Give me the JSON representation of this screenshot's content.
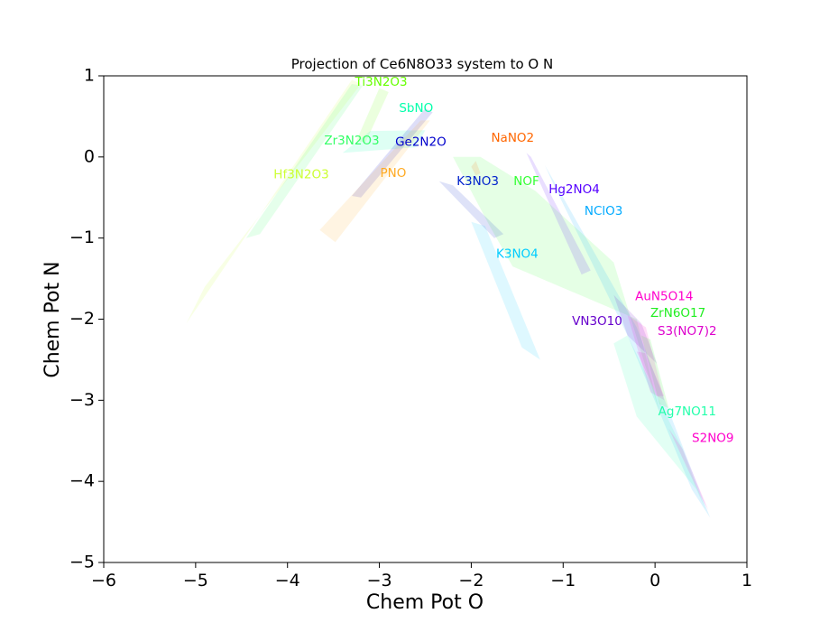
{
  "chart_data": {
    "type": "area",
    "title": "Projection of Ce6N8O33 system to O N",
    "xlabel": "Chem Pot O",
    "ylabel": "Chem Pot N",
    "xlim": [
      -6,
      1
    ],
    "ylim": [
      -5,
      1
    ],
    "xticks": [
      -6,
      -5,
      -4,
      -3,
      -2,
      -1,
      0,
      1
    ],
    "yticks": [
      -5,
      -4,
      -3,
      -2,
      -1,
      0,
      1
    ],
    "xtick_labels": [
      "−6",
      "−5",
      "−4",
      "−3",
      "−2",
      "−1",
      "0",
      "1"
    ],
    "ytick_labels": [
      "−5",
      "−4",
      "−3",
      "−2",
      "−1",
      "0",
      "1"
    ],
    "grid": false,
    "regions": [
      {
        "name": "Hf3N2O3",
        "color": "#ccff33",
        "label_at": [
          -3.85,
          -0.22
        ],
        "polygon": [
          [
            -5.1,
            -2.05
          ],
          [
            -3.3,
            0.95
          ],
          [
            -3.2,
            0.9
          ],
          [
            -4.9,
            -1.6
          ]
        ]
      },
      {
        "name": "Zr3N2O3",
        "color": "#33ff66",
        "label_at": [
          -3.3,
          0.2
        ],
        "polygon": [
          [
            -4.45,
            -1.0
          ],
          [
            -3.3,
            0.9
          ],
          [
            -3.18,
            0.88
          ],
          [
            -4.3,
            -0.95
          ]
        ]
      },
      {
        "name": "Ti3N2O3",
        "color": "#66ff00",
        "label_at": [
          -2.98,
          0.92
        ],
        "polygon": [
          [
            -3.25,
            0.2
          ],
          [
            -3.0,
            0.85
          ],
          [
            -2.9,
            0.8
          ],
          [
            -3.15,
            0.18
          ]
        ]
      },
      {
        "name": "SbNO",
        "color": "#00ffaa",
        "label_at": [
          -2.6,
          0.6
        ],
        "polygon": [
          [
            -3.4,
            0.05
          ],
          [
            -3.1,
            0.32
          ],
          [
            -2.5,
            0.33
          ],
          [
            -2.6,
            0.12
          ]
        ]
      },
      {
        "name": "Ge2N2O",
        "color": "#0000cc",
        "label_at": [
          -2.55,
          0.18
        ],
        "polygon": [
          [
            -3.3,
            -0.48
          ],
          [
            -2.5,
            0.6
          ],
          [
            -2.42,
            0.55
          ],
          [
            -3.2,
            -0.5
          ]
        ]
      },
      {
        "name": "PNO",
        "color": "#ffaa22",
        "label_at": [
          -2.85,
          -0.2
        ],
        "polygon": [
          [
            -3.65,
            -0.9
          ],
          [
            -2.55,
            0.45
          ],
          [
            -2.45,
            0.45
          ],
          [
            -3.48,
            -1.05
          ]
        ]
      },
      {
        "name": "NOF",
        "color": "#33ff33",
        "label_at": [
          -1.4,
          -0.3
        ],
        "polygon": [
          [
            -2.2,
            0.0
          ],
          [
            -1.9,
            0.0
          ],
          [
            -1.3,
            -0.42
          ],
          [
            -0.45,
            -1.3
          ],
          [
            0.05,
            -3.15
          ],
          [
            -0.2,
            -2.0
          ],
          [
            -1.55,
            -1.35
          ],
          [
            -1.8,
            -0.85
          ]
        ]
      },
      {
        "name": "NaNO2",
        "color": "#ff6600",
        "label_at": [
          -1.55,
          0.23
        ],
        "polygon": [
          [
            -2.0,
            -0.12
          ],
          [
            -1.95,
            -0.05
          ],
          [
            -1.9,
            -0.2
          ],
          [
            -1.95,
            -0.23
          ]
        ]
      },
      {
        "name": "K3NO3",
        "color": "#0022cc",
        "label_at": [
          -1.93,
          -0.3
        ],
        "polygon": [
          [
            -2.35,
            -0.3
          ],
          [
            -2.2,
            -0.35
          ],
          [
            -1.65,
            -0.95
          ],
          [
            -1.75,
            -1.0
          ]
        ]
      },
      {
        "name": "K3NO4",
        "color": "#00ccff",
        "label_at": [
          -1.5,
          -1.2
        ],
        "polygon": [
          [
            -2.0,
            -0.8
          ],
          [
            -1.85,
            -0.85
          ],
          [
            -1.25,
            -2.5
          ],
          [
            -1.45,
            -2.35
          ]
        ]
      },
      {
        "name": "Hg2NO4",
        "color": "#5500ff",
        "label_at": [
          -0.88,
          -0.4
        ],
        "polygon": [
          [
            -1.4,
            0.05
          ],
          [
            -0.8,
            -1.45
          ],
          [
            -0.7,
            -1.4
          ],
          [
            -1.35,
            0.0
          ]
        ]
      },
      {
        "name": "NClO3",
        "color": "#00aaff",
        "label_at": [
          -0.56,
          -0.67
        ],
        "polygon": [
          [
            -1.2,
            -0.1
          ],
          [
            -0.2,
            -2.1
          ],
          [
            0.6,
            -4.45
          ],
          [
            0.4,
            -4.1
          ],
          [
            -0.3,
            -2.2
          ],
          [
            -1.1,
            -0.35
          ]
        ]
      },
      {
        "name": "VN3O10",
        "color": "#6600cc",
        "label_at": [
          -0.63,
          -2.03
        ],
        "polygon": [
          [
            -0.45,
            -1.7
          ],
          [
            -0.15,
            -2.05
          ],
          [
            0.02,
            -2.55
          ],
          [
            -0.3,
            -2.2
          ]
        ]
      },
      {
        "name": "AuN5O14",
        "color": "#ff00cc",
        "label_at": [
          0.1,
          -1.72
        ],
        "polygon": [
          [
            -0.3,
            -1.95
          ],
          [
            -0.1,
            -2.1
          ],
          [
            0.1,
            -3.0
          ],
          [
            -0.05,
            -2.9
          ]
        ]
      },
      {
        "name": "ZrN6O17",
        "color": "#22ee22",
        "label_at": [
          0.25,
          -1.93
        ],
        "polygon": [
          [
            -0.15,
            -2.2
          ],
          [
            -0.05,
            -2.25
          ],
          [
            0.15,
            -3.1
          ],
          [
            0.05,
            -3.05
          ]
        ]
      },
      {
        "name": "S3(NO7)2",
        "color": "#dd00cc",
        "label_at": [
          0.35,
          -2.15
        ],
        "polygon": [
          [
            -0.2,
            -2.4
          ],
          [
            -0.1,
            -2.42
          ],
          [
            0.1,
            -2.95
          ],
          [
            0.02,
            -2.95
          ]
        ]
      },
      {
        "name": "Ag7NO11",
        "color": "#22ffaa",
        "label_at": [
          0.35,
          -3.14
        ],
        "polygon": [
          [
            -0.45,
            -2.3
          ],
          [
            -0.2,
            -3.2
          ],
          [
            0.45,
            -4.1
          ],
          [
            0.55,
            -4.35
          ],
          [
            0.3,
            -3.6
          ],
          [
            -0.3,
            -2.2
          ]
        ]
      },
      {
        "name": "S2NO9",
        "color": "#ff00cc",
        "label_at": [
          0.63,
          -3.47
        ],
        "polygon": [
          [
            0.15,
            -3.35
          ],
          [
            0.5,
            -4.2
          ],
          [
            0.58,
            -4.35
          ],
          [
            0.3,
            -3.6
          ]
        ]
      }
    ]
  }
}
